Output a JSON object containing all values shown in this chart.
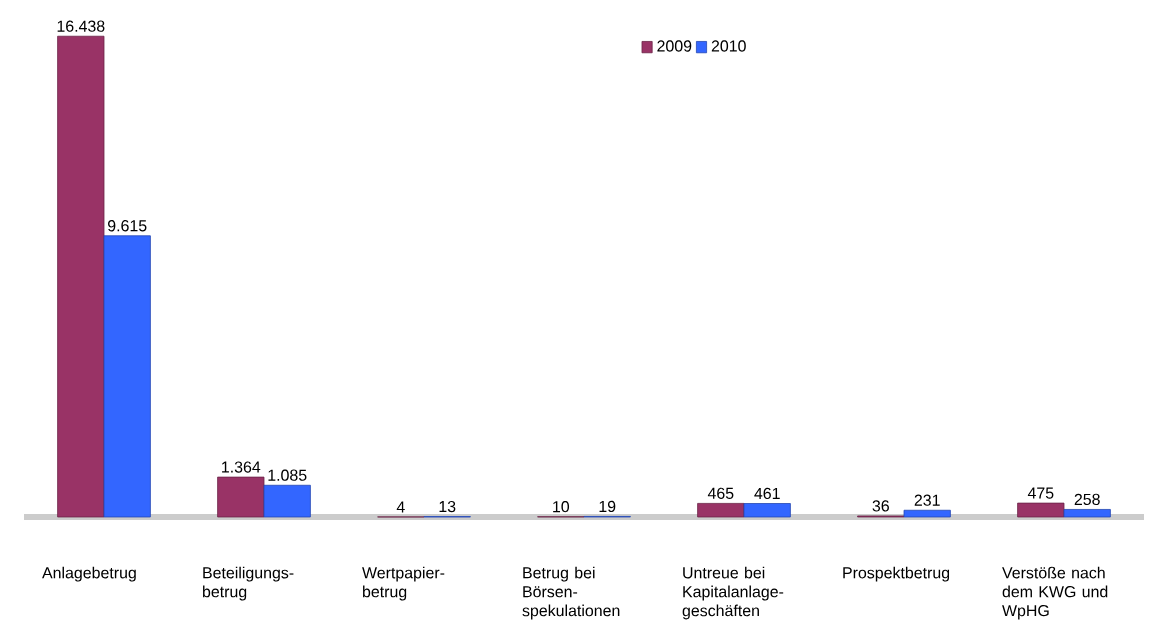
{
  "chart_data": {
    "type": "bar",
    "categories": [
      "Anlagebetrug",
      "Beteiligungs-betrug",
      "Wertpapier-betrug",
      "Betrug bei Börsen-spekulationen",
      "Untreue bei Kapitalanlage-geschäften",
      "Prospektbetrug",
      "Verstöße nach dem KWG und WpHG"
    ],
    "series": [
      {
        "name": "2009",
        "color": "#993366",
        "values": [
          16438,
          1364,
          4,
          10,
          465,
          36,
          475
        ],
        "value_labels": [
          "16.438",
          "1.364",
          "4",
          "10",
          "465",
          "36",
          "475"
        ]
      },
      {
        "name": "2010",
        "color": "#3366ff",
        "values": [
          9615,
          1085,
          13,
          19,
          461,
          231,
          258
        ],
        "value_labels": [
          "9.615",
          "1.085",
          "13",
          "19",
          "461",
          "231",
          "258"
        ]
      }
    ],
    "legend": "top"
  }
}
